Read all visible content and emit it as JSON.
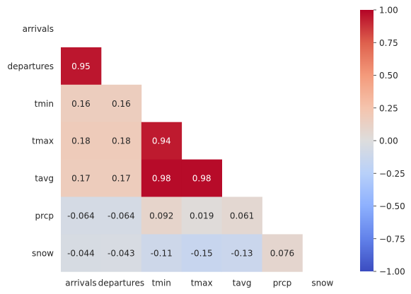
{
  "chart_data": {
    "type": "heatmap",
    "title": "",
    "mask": "upper-triangle-including-diagonal",
    "rows": [
      "arrivals",
      "departures",
      "tmin",
      "tmax",
      "tavg",
      "prcp",
      "snow"
    ],
    "columns": [
      "arrivals",
      "departures",
      "tmin",
      "tmax",
      "tavg",
      "prcp",
      "snow"
    ],
    "values": [
      [
        null,
        null,
        null,
        null,
        null,
        null,
        null
      ],
      [
        0.95,
        null,
        null,
        null,
        null,
        null,
        null
      ],
      [
        0.16,
        0.16,
        null,
        null,
        null,
        null,
        null
      ],
      [
        0.18,
        0.18,
        0.94,
        null,
        null,
        null,
        null
      ],
      [
        0.17,
        0.17,
        0.98,
        0.98,
        null,
        null,
        null
      ],
      [
        -0.064,
        -0.064,
        0.092,
        0.019,
        0.061,
        null,
        null
      ],
      [
        -0.044,
        -0.043,
        -0.11,
        -0.15,
        -0.13,
        0.076,
        null
      ]
    ],
    "annotations": [
      [
        "",
        "",
        "",
        "",
        "",
        "",
        ""
      ],
      [
        "0.95",
        "",
        "",
        "",
        "",
        "",
        ""
      ],
      [
        "0.16",
        "0.16",
        "",
        "",
        "",
        "",
        ""
      ],
      [
        "0.18",
        "0.18",
        "0.94",
        "",
        "",
        "",
        ""
      ],
      [
        "0.17",
        "0.17",
        "0.98",
        "0.98",
        "",
        "",
        ""
      ],
      [
        "-0.064",
        "-0.064",
        "0.092",
        "0.019",
        "0.061",
        "",
        ""
      ],
      [
        "-0.044",
        "-0.043",
        "-0.11",
        "-0.15",
        "-0.13",
        "0.076",
        ""
      ]
    ],
    "colormap": "coolwarm",
    "vmin": -1.0,
    "vmax": 1.0,
    "colorbar_ticks": [
      "1.00",
      "0.75",
      "0.50",
      "0.25",
      "0.00",
      "−0.25",
      "−0.50",
      "−0.75",
      "−1.00"
    ],
    "colorbar_tick_values": [
      1.0,
      0.75,
      0.5,
      0.25,
      0.0,
      -0.25,
      -0.5,
      -0.75,
      -1.0
    ]
  }
}
